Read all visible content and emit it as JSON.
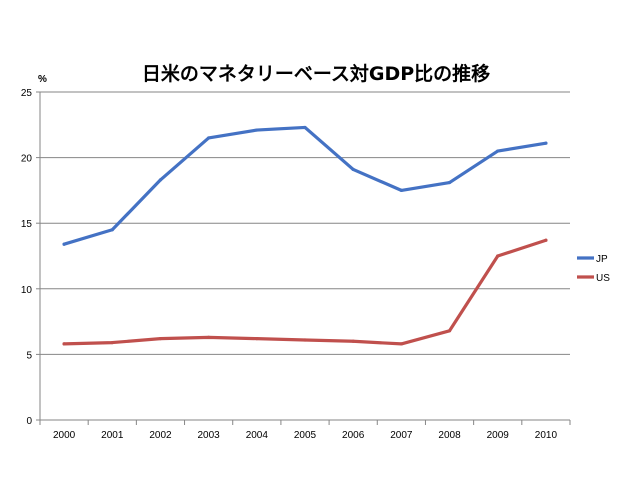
{
  "chart_data": {
    "type": "line",
    "title": "日米のマネタリーベース対GDP比の推移",
    "ylabel": "%",
    "xlabel": "",
    "ylim": [
      0,
      25
    ],
    "yticks": [
      0,
      5,
      10,
      15,
      20,
      25
    ],
    "grid": true,
    "legend_position": "right",
    "categories": [
      "2000",
      "2001",
      "2002",
      "2003",
      "2004",
      "2005",
      "2006",
      "2007",
      "2008",
      "2009",
      "2010"
    ],
    "series": [
      {
        "name": "JP",
        "color": "#4472C4",
        "values": [
          13.4,
          14.5,
          18.3,
          21.5,
          22.1,
          22.3,
          19.1,
          17.5,
          18.1,
          20.5,
          21.1
        ]
      },
      {
        "name": "US",
        "color": "#C0504D",
        "values": [
          5.8,
          5.9,
          6.2,
          6.3,
          6.2,
          6.1,
          6.0,
          5.8,
          6.8,
          12.5,
          13.7
        ]
      }
    ]
  }
}
